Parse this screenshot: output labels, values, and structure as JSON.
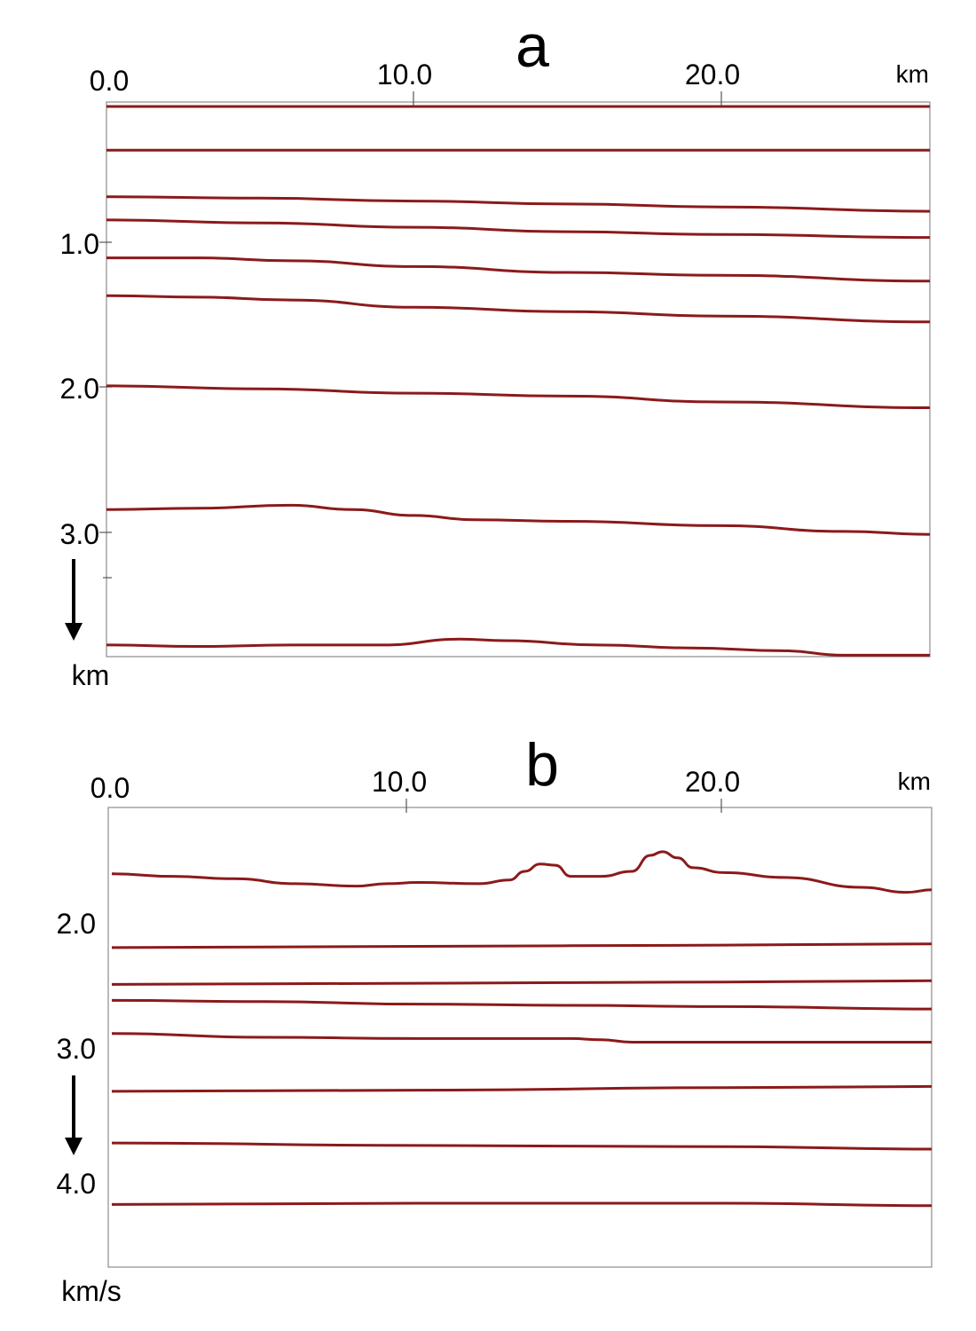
{
  "chart_data": [
    {
      "type": "line",
      "panel_label": "a",
      "x_unit": "km",
      "y_unit": "km",
      "xlim": [
        0,
        26.8
      ],
      "ylim": [
        0,
        3.78
      ],
      "x_ticks": [
        0,
        10,
        20
      ],
      "x_tick_labels": [
        "0.0",
        "10.0",
        "20.0"
      ],
      "y_ticks": [
        1.0,
        2.0,
        3.0
      ],
      "y_tick_labels": [
        "1.0",
        "2.0",
        "3.0"
      ],
      "minor_y_ticks": [
        3.3
      ],
      "y_direction": "down",
      "grid": false,
      "line_color": "#8b1a1a",
      "series": [
        {
          "x": [
            0,
            26.8
          ],
          "y": [
            0.0,
            0.0
          ]
        },
        {
          "x": [
            0,
            26.8
          ],
          "y": [
            0.3,
            0.3
          ]
        },
        {
          "x": [
            0,
            5,
            10,
            15,
            20,
            26.8
          ],
          "y": [
            0.62,
            0.63,
            0.65,
            0.67,
            0.69,
            0.72
          ]
        },
        {
          "x": [
            0,
            5,
            10,
            15,
            20,
            26.8
          ],
          "y": [
            0.78,
            0.8,
            0.83,
            0.86,
            0.88,
            0.9
          ]
        },
        {
          "x": [
            0,
            3,
            6,
            10,
            15,
            20,
            26.8
          ],
          "y": [
            1.04,
            1.04,
            1.06,
            1.1,
            1.14,
            1.16,
            1.2
          ]
        },
        {
          "x": [
            0,
            3,
            6,
            10,
            15,
            20,
            26.8
          ],
          "y": [
            1.3,
            1.31,
            1.33,
            1.38,
            1.41,
            1.44,
            1.48
          ]
        },
        {
          "x": [
            0,
            5,
            10,
            15,
            20,
            26.8
          ],
          "y": [
            1.92,
            1.94,
            1.97,
            1.99,
            2.03,
            2.07
          ]
        },
        {
          "x": [
            0,
            3,
            6,
            8,
            10,
            12,
            15,
            20,
            24,
            26.8
          ],
          "y": [
            2.77,
            2.76,
            2.74,
            2.77,
            2.81,
            2.84,
            2.85,
            2.88,
            2.92,
            2.94
          ]
        },
        {
          "x": [
            0,
            3,
            6,
            9,
            11.5,
            13,
            16,
            19,
            22,
            24,
            26.8
          ],
          "y": [
            3.7,
            3.71,
            3.7,
            3.7,
            3.66,
            3.67,
            3.7,
            3.72,
            3.74,
            3.77,
            3.77
          ]
        }
      ]
    },
    {
      "type": "line",
      "panel_label": "b",
      "x_unit": "km",
      "y_unit": "km/s",
      "xlim": [
        0,
        26.8
      ],
      "ylim": [
        1.21,
        4.95
      ],
      "x_ticks": [
        0,
        10,
        20
      ],
      "x_tick_labels": [
        "0.0",
        "10.0",
        "20.0"
      ],
      "y_ticks": [
        2.0,
        3.0,
        4.0
      ],
      "y_tick_labels": [
        "2.0",
        "3.0",
        "4.0"
      ],
      "y_direction": "down",
      "grid": false,
      "line_color": "#8b1a1a",
      "series": [
        {
          "x": [
            0,
            2,
            4,
            6,
            8,
            9,
            10,
            12,
            13,
            13.5,
            14,
            14.5,
            15,
            16,
            17,
            17.6,
            18,
            18.5,
            19,
            20,
            22,
            24.5,
            26,
            26.8
          ],
          "y": [
            1.75,
            1.77,
            1.79,
            1.83,
            1.85,
            1.83,
            1.82,
            1.83,
            1.8,
            1.73,
            1.67,
            1.68,
            1.77,
            1.77,
            1.73,
            1.6,
            1.57,
            1.62,
            1.7,
            1.74,
            1.78,
            1.86,
            1.9,
            1.88
          ]
        },
        {
          "x": [
            0,
            10,
            20,
            26.8
          ],
          "y": [
            2.35,
            2.34,
            2.33,
            2.32
          ]
        },
        {
          "x": [
            0,
            10,
            20,
            26.8
          ],
          "y": [
            2.65,
            2.64,
            2.63,
            2.62
          ]
        },
        {
          "x": [
            0,
            5,
            10,
            15,
            20,
            26.8
          ],
          "y": [
            2.78,
            2.79,
            2.81,
            2.82,
            2.83,
            2.85
          ]
        },
        {
          "x": [
            0,
            5,
            10,
            15,
            16,
            17,
            20,
            26.8
          ],
          "y": [
            3.05,
            3.08,
            3.09,
            3.09,
            3.1,
            3.12,
            3.12,
            3.12
          ]
        },
        {
          "x": [
            0,
            10,
            20,
            26.8
          ],
          "y": [
            3.52,
            3.51,
            3.49,
            3.48
          ]
        },
        {
          "x": [
            0,
            10,
            20,
            26.8
          ],
          "y": [
            3.94,
            3.96,
            3.97,
            3.99
          ]
        },
        {
          "x": [
            0,
            10,
            20,
            26.8
          ],
          "y": [
            4.44,
            4.43,
            4.43,
            4.45
          ]
        }
      ]
    }
  ]
}
